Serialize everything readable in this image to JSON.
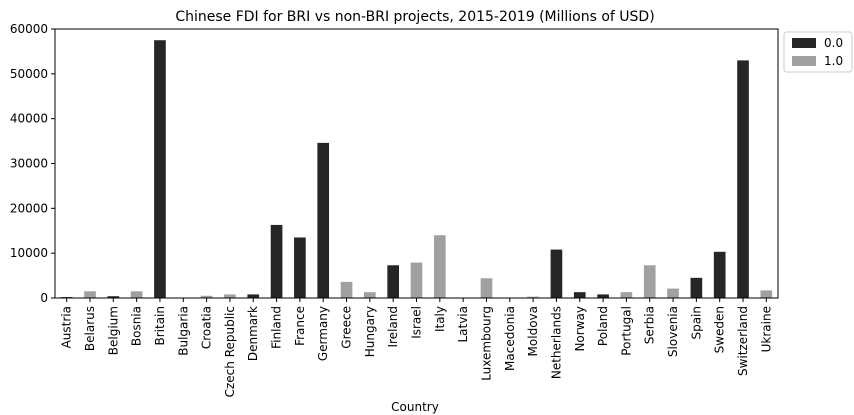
{
  "chart_data": {
    "type": "bar",
    "title": "Chinese FDI for BRI vs non-BRI projects, 2015-2019 (Millions of USD)",
    "xlabel": "Country",
    "ylabel": "",
    "ylim": [
      0,
      60000
    ],
    "yticks": [
      0,
      10000,
      20000,
      30000,
      40000,
      50000,
      60000
    ],
    "grid": false,
    "legend_position": "outside-top-right",
    "categories": [
      "Austria",
      "Belarus",
      "Belgium",
      "Bosnia",
      "Britain",
      "Bulgaria",
      "Croatia",
      "Czech Republic",
      "Denmark",
      "Finland",
      "France",
      "Germany",
      "Greece",
      "Hungary",
      "Ireland",
      "Israel",
      "Italy",
      "Latvia",
      "Luxembourg",
      "Macedonia",
      "Moldova",
      "Netherlands",
      "Norway",
      "Poland",
      "Portugal",
      "Serbia",
      "Slovenia",
      "Spain",
      "Sweden",
      "Switzerland",
      "Ukraine"
    ],
    "values": [
      200,
      1500,
      400,
      1500,
      57500,
      100,
      500,
      800,
      800,
      16300,
      13500,
      34600,
      3600,
      1300,
      7300,
      7900,
      14000,
      100,
      4400,
      100,
      300,
      10800,
      1300,
      800,
      1300,
      7300,
      2100,
      4500,
      10300,
      53000,
      1700
    ],
    "group": [
      "0.0",
      "1.0",
      "0.0",
      "1.0",
      "0.0",
      "1.0",
      "1.0",
      "1.0",
      "0.0",
      "0.0",
      "0.0",
      "0.0",
      "1.0",
      "1.0",
      "0.0",
      "1.0",
      "1.0",
      "1.0",
      "1.0",
      "1.0",
      "1.0",
      "0.0",
      "0.0",
      "0.0",
      "1.0",
      "1.0",
      "1.0",
      "0.0",
      "0.0",
      "0.0",
      "1.0"
    ],
    "legend": [
      {
        "label": "0.0",
        "color": "#262626"
      },
      {
        "label": "1.0",
        "color": "#a0a0a0"
      }
    ]
  }
}
